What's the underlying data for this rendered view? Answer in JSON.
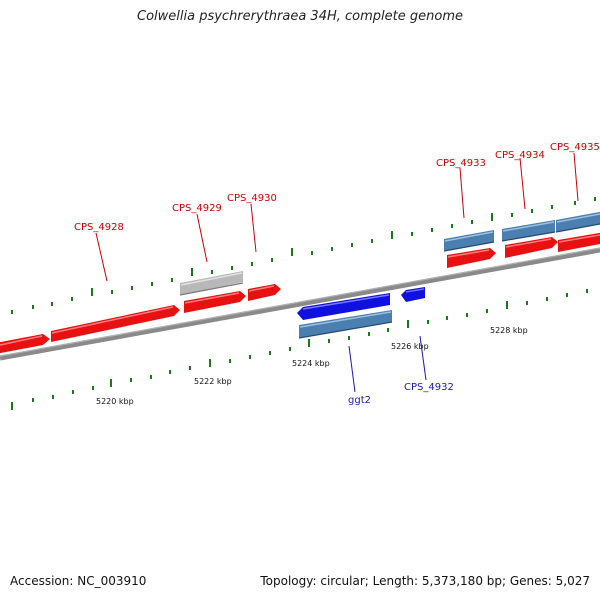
{
  "title": "Colwellia psychrerythraea 34H, complete genome",
  "footer": {
    "accession": "Accession: NC_003910",
    "topology": "Topology: circular; Length: 5,373,180 bp; Genes: 5,027"
  },
  "colors": {
    "forward_gene": "#e81010",
    "reverse_gene": "#1010e0",
    "cds_blue": "#4a7fb0",
    "gray_feature": "#b8b8b8",
    "backbone": "#777777",
    "tick": "#1a7a1a",
    "label_red": "#cc0000",
    "label_blue": "#1a1ab0"
  },
  "scale_labels": [
    "5220 kbp",
    "5222 kbp",
    "5224 kbp",
    "5226 kbp",
    "5228 kbp"
  ],
  "gene_labels": [
    {
      "text": "CPS_4928",
      "color": "red"
    },
    {
      "text": "CPS_4929",
      "color": "red"
    },
    {
      "text": "CPS_4930",
      "color": "red"
    },
    {
      "text": "CPS_4933",
      "color": "red"
    },
    {
      "text": "CPS_4934",
      "color": "red"
    },
    {
      "text": "CPS_4935",
      "color": "red"
    },
    {
      "text": "ggt2",
      "color": "blue"
    },
    {
      "text": "CPS_4932",
      "color": "blue"
    }
  ]
}
